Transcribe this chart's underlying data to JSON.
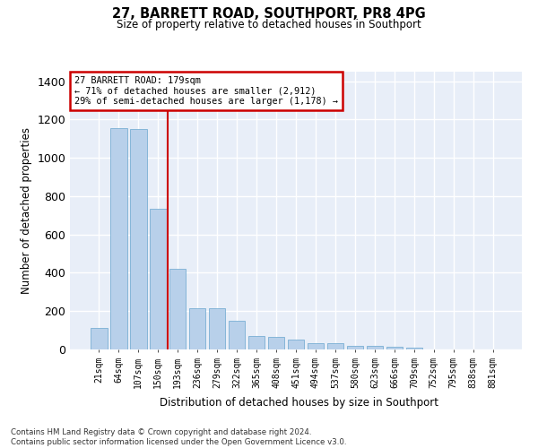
{
  "title": "27, BARRETT ROAD, SOUTHPORT, PR8 4PG",
  "subtitle": "Size of property relative to detached houses in Southport",
  "xlabel": "Distribution of detached houses by size in Southport",
  "ylabel": "Number of detached properties",
  "bar_color": "#b8d0ea",
  "bar_edge_color": "#7aafd4",
  "background_color": "#e8eef8",
  "grid_color": "#ffffff",
  "categories": [
    "21sqm",
    "64sqm",
    "107sqm",
    "150sqm",
    "193sqm",
    "236sqm",
    "279sqm",
    "322sqm",
    "365sqm",
    "408sqm",
    "451sqm",
    "494sqm",
    "537sqm",
    "580sqm",
    "623sqm",
    "666sqm",
    "709sqm",
    "752sqm",
    "795sqm",
    "838sqm",
    "881sqm"
  ],
  "values": [
    110,
    1155,
    1150,
    735,
    420,
    215,
    215,
    150,
    70,
    65,
    50,
    32,
    32,
    18,
    18,
    15,
    10,
    0,
    0,
    0,
    0
  ],
  "vline_color": "#cc0000",
  "vline_index": 3.5,
  "annotation_line1": "27 BARRETT ROAD: 179sqm",
  "annotation_line2": "← 71% of detached houses are smaller (2,912)",
  "annotation_line3": "29% of semi-detached houses are larger (1,178) →",
  "annotation_box_edgecolor": "#cc0000",
  "ylim": [
    0,
    1450
  ],
  "yticks": [
    0,
    200,
    400,
    600,
    800,
    1000,
    1200,
    1400
  ],
  "footer_line1": "Contains HM Land Registry data © Crown copyright and database right 2024.",
  "footer_line2": "Contains public sector information licensed under the Open Government Licence v3.0."
}
